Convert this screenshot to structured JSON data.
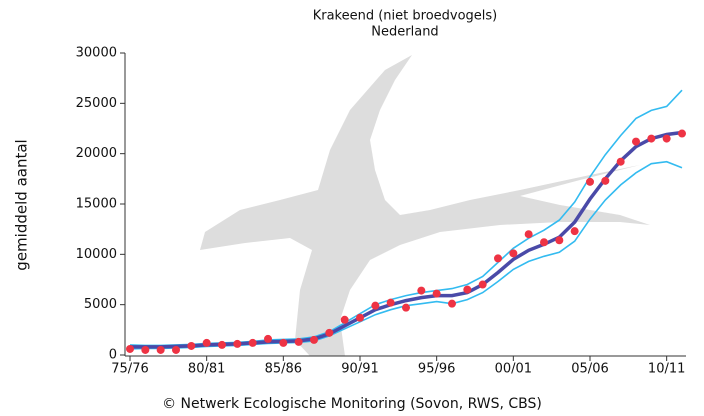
{
  "chart_data": {
    "type": "line",
    "title": "Krakeend (niet broedvogels)",
    "subtitle": "Nederland",
    "y_label": "gemiddeld aantal",
    "source": "©  Netwerk Ecologische Monitoring (Sovon, RWS, CBS)",
    "categories": [
      "75/76",
      null,
      null,
      null,
      null,
      "80/81",
      null,
      null,
      null,
      null,
      "85/86",
      null,
      null,
      null,
      null,
      "90/91",
      null,
      null,
      null,
      null,
      "95/96",
      null,
      null,
      null,
      null,
      "00/01",
      null,
      null,
      null,
      null,
      "05/06",
      null,
      null,
      null,
      null,
      "10/11",
      null
    ],
    "ylim": [
      0,
      30000
    ],
    "yticks": [
      0,
      5000,
      10000,
      15000,
      20000,
      25000,
      30000
    ],
    "series": [
      {
        "color": "#33bbf0",
        "style": "line",
        "values": [
          1000,
          950,
          950,
          1000,
          1050,
          1150,
          1200,
          1250,
          1350,
          1500,
          1550,
          1600,
          1800,
          2300,
          3200,
          4100,
          5000,
          5500,
          5900,
          6200,
          6400,
          6600,
          7000,
          7800,
          9200,
          10600,
          11600,
          12400,
          13400,
          15200,
          17700,
          19900,
          21800,
          23500,
          24300,
          24700,
          26300
        ]
      },
      {
        "color": "#33bbf0",
        "style": "line",
        "values": [
          600,
          650,
          650,
          700,
          750,
          850,
          900,
          950,
          1050,
          1150,
          1200,
          1250,
          1400,
          1900,
          2600,
          3300,
          4000,
          4500,
          4900,
          5100,
          5300,
          5100,
          5500,
          6200,
          7300,
          8500,
          9300,
          9800,
          10200,
          11300,
          13500,
          15400,
          16900,
          18100,
          19000,
          19200,
          18600
        ]
      },
      {
        "color": "#4a4aa8",
        "style": "line",
        "values": [
          800,
          800,
          800,
          850,
          900,
          1000,
          1050,
          1100,
          1200,
          1300,
          1350,
          1400,
          1600,
          2100,
          2900,
          3700,
          4500,
          5000,
          5400,
          5700,
          5900,
          5900,
          6200,
          7000,
          8200,
          9500,
          10400,
          11000,
          11700,
          13200,
          15500,
          17500,
          19300,
          20700,
          21500,
          21900,
          22100
        ]
      },
      {
        "color": "#ee3344",
        "style": "points",
        "values": [
          600,
          500,
          500,
          500,
          900,
          1200,
          1000,
          1100,
          1200,
          1600,
          1200,
          1300,
          1500,
          2200,
          3500,
          3700,
          4900,
          5200,
          4700,
          6400,
          6100,
          5100,
          6500,
          7000,
          9600,
          10100,
          12000,
          11200,
          11400,
          12300,
          17200,
          17300,
          19200,
          21200,
          21500,
          21500,
          22000
        ]
      }
    ]
  }
}
